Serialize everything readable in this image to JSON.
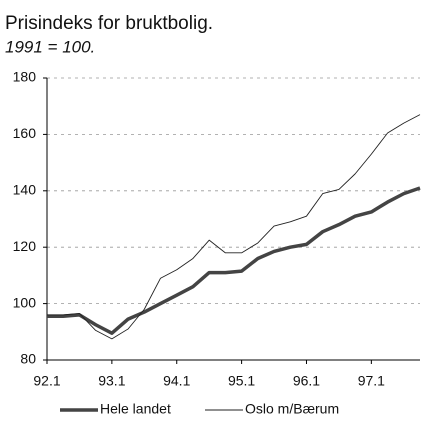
{
  "chart_data": {
    "type": "line",
    "title": "Prisindeks for bruktbolig.",
    "subtitle": "1991 = 100.",
    "categories": [
      "92.1",
      null,
      null,
      null,
      "93.1",
      null,
      null,
      null,
      "94.1",
      null,
      null,
      null,
      "95.1",
      null,
      null,
      null,
      "96.1",
      null,
      null,
      null,
      "97.1",
      null,
      null,
      null
    ],
    "series": [
      {
        "name": "Hele landet",
        "color": "#444444",
        "width": 3.5,
        "values": [
          95.5,
          95.5,
          96,
          92.5,
          89.5,
          94.5,
          97,
          100,
          103,
          106,
          111,
          111,
          111.5,
          116,
          118.5,
          120,
          121,
          125.5,
          128,
          131,
          132.5,
          136,
          139,
          141
        ]
      },
      {
        "name": "Oslo m/Bærum",
        "color": "#222222",
        "width": 0.9,
        "values": [
          96,
          96,
          96.5,
          90.5,
          87.5,
          91,
          98,
          109,
          112,
          116,
          122.5,
          118,
          118,
          121.5,
          127.5,
          129,
          131,
          139,
          140.5,
          146,
          153,
          160.5,
          164,
          167
        ]
      }
    ],
    "ylim": [
      80,
      180
    ],
    "yticks": [
      80,
      100,
      120,
      140,
      160,
      180
    ],
    "grid": true
  }
}
